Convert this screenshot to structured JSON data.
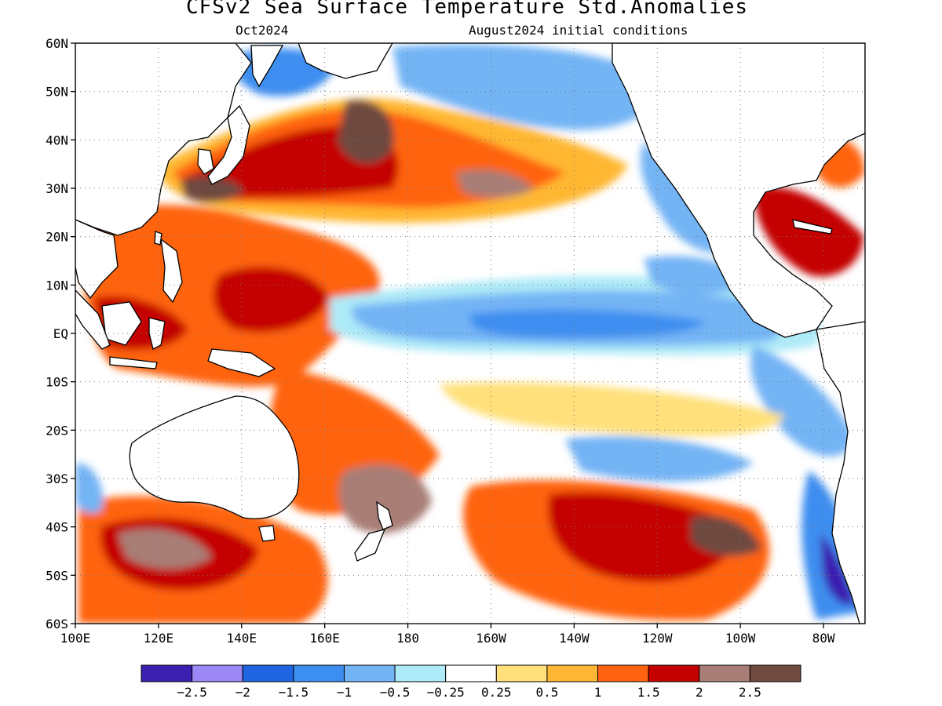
{
  "title": "CFSv2 Sea Surface Temperature Std.Anomalies",
  "subtitle_left": "Oct2024",
  "subtitle_right": "August2024 initial conditions",
  "map": {
    "lon_min": 100,
    "lon_max": 290,
    "lat_min": -60,
    "lat_max": 60,
    "lat_ticks": [
      {
        "value": 60,
        "label": "60N"
      },
      {
        "value": 50,
        "label": "50N"
      },
      {
        "value": 40,
        "label": "40N"
      },
      {
        "value": 30,
        "label": "30N"
      },
      {
        "value": 20,
        "label": "20N"
      },
      {
        "value": 10,
        "label": "10N"
      },
      {
        "value": 0,
        "label": "EQ"
      },
      {
        "value": -10,
        "label": "10S"
      },
      {
        "value": -20,
        "label": "20S"
      },
      {
        "value": -30,
        "label": "30S"
      },
      {
        "value": -40,
        "label": "40S"
      },
      {
        "value": -50,
        "label": "50S"
      },
      {
        "value": -60,
        "label": "60S"
      }
    ],
    "lon_ticks": [
      {
        "value": 100,
        "label": "100E"
      },
      {
        "value": 120,
        "label": "120E"
      },
      {
        "value": 140,
        "label": "140E"
      },
      {
        "value": 160,
        "label": "160E"
      },
      {
        "value": 180,
        "label": "180"
      },
      {
        "value": 200,
        "label": "160W"
      },
      {
        "value": 220,
        "label": "140W"
      },
      {
        "value": 240,
        "label": "120W"
      },
      {
        "value": 260,
        "label": "100W"
      },
      {
        "value": 280,
        "label": "80W"
      }
    ],
    "grid": "dotted"
  },
  "colorbar": {
    "colors": [
      "#3a1fb0",
      "#9b87f5",
      "#1f64e0",
      "#3c8ef0",
      "#73b4f5",
      "#aeeaf7",
      "#ffffff",
      "#ffe07a",
      "#ffb733",
      "#ff6310",
      "#c40000",
      "#a87e76",
      "#6e4a3f"
    ],
    "labels": [
      "−2.5",
      "−2",
      "−1.5",
      "−1",
      "−0.5",
      "−0.25",
      "0.25",
      "0.5",
      "1",
      "1.5",
      "2",
      "2.5"
    ]
  },
  "anomaly_regions": [
    {
      "level": 1.5,
      "lon": [
        126,
        176
      ],
      "lat": [
        -6,
        26
      ]
    },
    {
      "level": 2,
      "lon": [
        140,
        160
      ],
      "lat": [
        0,
        14
      ]
    },
    {
      "level": 1.5,
      "lon": [
        160,
        225
      ],
      "lat": [
        26,
        46
      ]
    },
    {
      "level": 2.5,
      "lon": [
        165,
        185
      ],
      "lat": [
        36,
        48
      ]
    },
    {
      "level": -1,
      "lon": [
        180,
        260
      ],
      "lat": [
        -4,
        10
      ]
    },
    {
      "level": -1,
      "lon": [
        200,
        255
      ],
      "lat": [
        40,
        58
      ]
    },
    {
      "level": 1.5,
      "lon": [
        100,
        170
      ],
      "lat": [
        -58,
        -36
      ]
    },
    {
      "level": 2,
      "lon": [
        220,
        270
      ],
      "lat": [
        -55,
        -36
      ]
    },
    {
      "level": -2,
      "lon": [
        275,
        289
      ],
      "lat": [
        -58,
        -40
      ]
    }
  ]
}
